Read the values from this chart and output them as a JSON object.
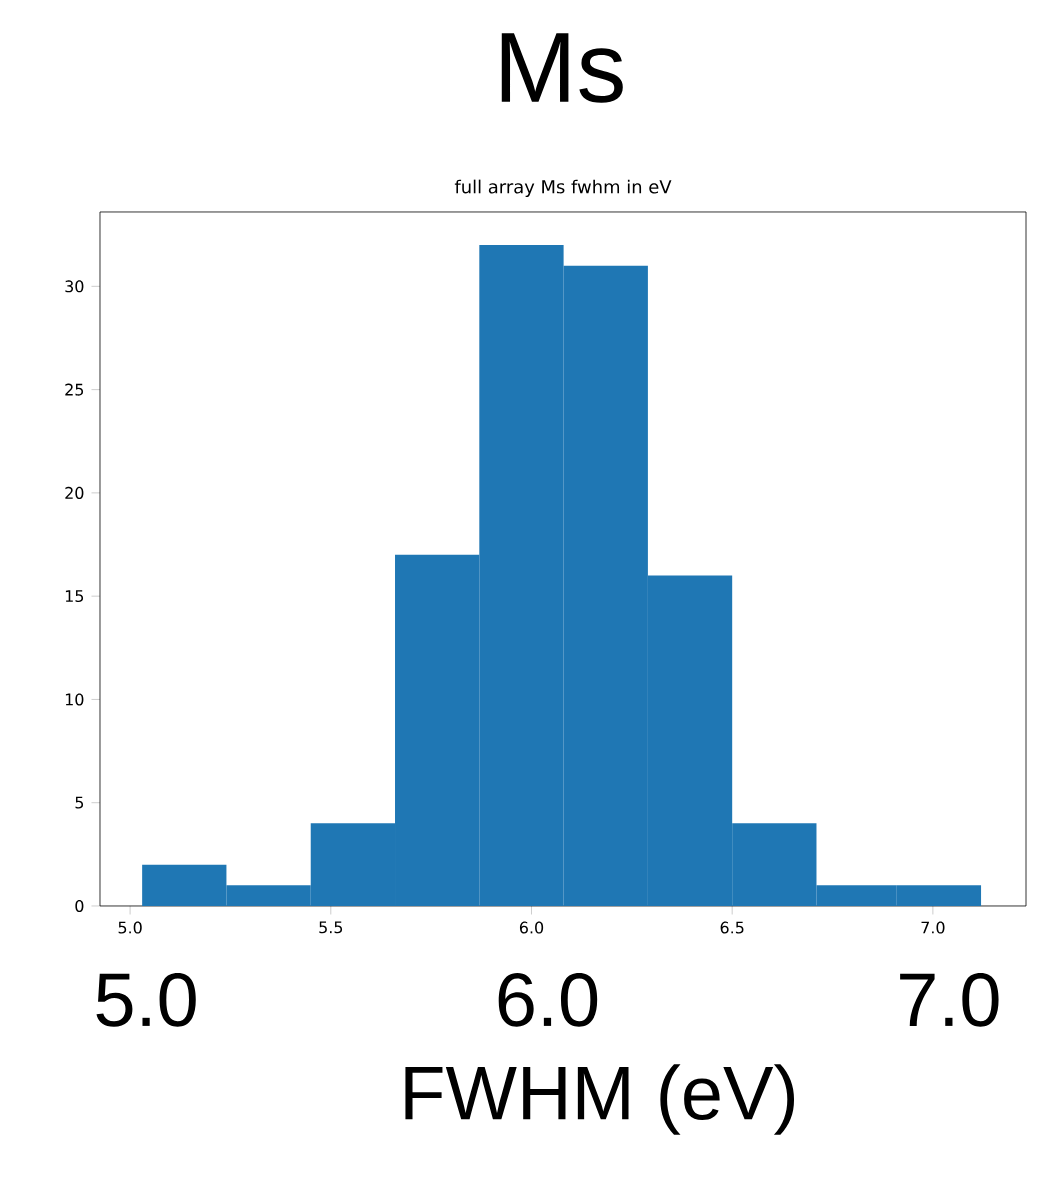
{
  "chart_data": {
    "type": "histogram",
    "title": "Ms",
    "subtitle": "full array Ms fwhm in eV",
    "xlabel": "FWHM (eV)",
    "bins": [
      5.03,
      5.24,
      5.45,
      5.66,
      5.87,
      6.08,
      6.29,
      6.5,
      6.71,
      6.91,
      7.12
    ],
    "values": [
      2,
      1,
      4,
      17,
      32,
      31,
      16,
      4,
      1,
      1
    ],
    "color": "#1f77b4",
    "xlim": [
      4.925,
      7.232
    ],
    "ylim": [
      0,
      33.6
    ],
    "xticks": [
      {
        "value": 5,
        "label": "5.0"
      },
      5.5,
      {
        "value": 6,
        "label": "6.0"
      },
      6.5,
      {
        "value": 7,
        "label": "7.0"
      }
    ],
    "yticks": [
      0,
      5,
      10,
      15,
      20,
      25,
      30
    ],
    "x2lim": [
      4.925,
      7.232
    ],
    "x2ticks": [
      {
        "value": 5,
        "label": "5.0"
      },
      {
        "value": 6,
        "label": "6.0"
      },
      {
        "value": 7,
        "label": "7.0"
      }
    ]
  }
}
